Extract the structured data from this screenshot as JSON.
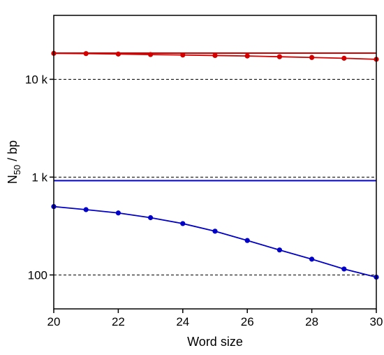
{
  "chart_data": {
    "type": "line",
    "xlabel": "Word size",
    "ylabel": {
      "base": "N",
      "subscript": "50",
      "rest": " / bp"
    },
    "xlim": [
      20,
      30
    ],
    "ylim": [
      45,
      45000
    ],
    "yscale": "log",
    "x_ticks": [
      20,
      22,
      24,
      26,
      28,
      30
    ],
    "y_ticks": [
      {
        "value": 100,
        "label": "100"
      },
      {
        "value": 1000,
        "label": "1 k"
      },
      {
        "value": 10000,
        "label": "10 k"
      }
    ],
    "grid": "dashed horizontal lines at y ticks",
    "x": [
      20,
      21,
      22,
      23,
      24,
      25,
      26,
      27,
      28,
      29,
      30
    ],
    "series": [
      {
        "color": "#d40000",
        "marker": "circle",
        "values": [
          18400,
          18300,
          18100,
          17900,
          17700,
          17500,
          17300,
          17000,
          16700,
          16400,
          16000
        ]
      },
      {
        "color": "#0000c8",
        "marker": "circle",
        "values": [
          500,
          465,
          430,
          385,
          335,
          280,
          225,
          180,
          145,
          115,
          95
        ]
      }
    ],
    "reference_lines": [
      {
        "value": 18500,
        "color": "#d40000"
      },
      {
        "value": 920,
        "color": "#0000c8"
      }
    ]
  }
}
